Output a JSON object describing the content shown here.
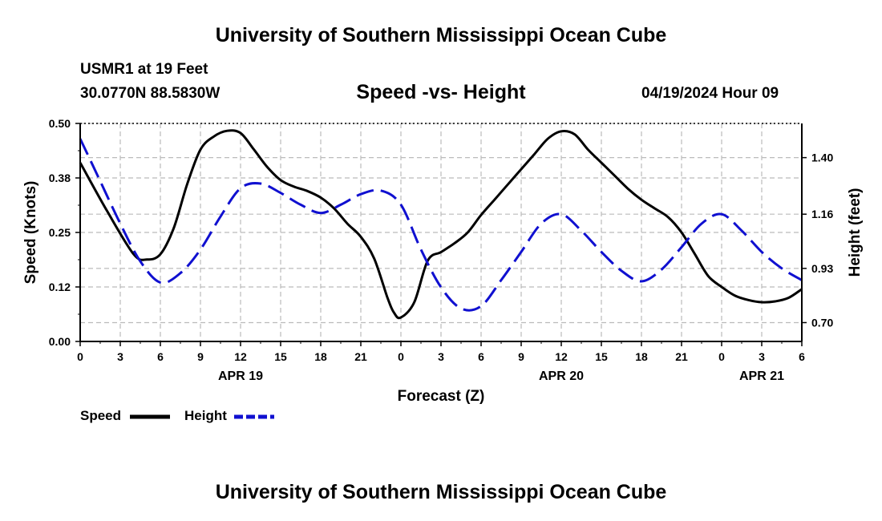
{
  "header": {
    "title": "University of Southern Mississippi Ocean Cube",
    "station": "USMR1 at 19 Feet",
    "coords": "30.0770N  88.5830W",
    "subtitle": "Speed -vs- Height",
    "datetime": "04/19/2024 Hour 09"
  },
  "footer": {
    "title": "University of Southern Mississippi Ocean Cube"
  },
  "legend": {
    "speed_label": "Speed",
    "height_label": "Height"
  },
  "colors": {
    "speed": "#000000",
    "height": "#1010d0",
    "grid": "#bbbbbb"
  },
  "chart_data": {
    "type": "line",
    "title": "Speed -vs- Height",
    "xlabel": "Forecast (Z)",
    "ylabel": "Speed (Knots)",
    "ylabel_right": "Height (feet)",
    "xlim": [
      0,
      54
    ],
    "ylim": [
      0,
      0.5
    ],
    "ylim_right": [
      0.62,
      1.545
    ],
    "x_ticks": [
      0,
      3,
      6,
      9,
      12,
      15,
      18,
      21,
      24,
      27,
      30,
      33,
      36,
      39,
      42,
      45,
      48,
      51,
      54
    ],
    "x_tick_labels": [
      "0",
      "3",
      "6",
      "9",
      "12",
      "15",
      "18",
      "21",
      "0",
      "3",
      "6",
      "9",
      "12",
      "15",
      "18",
      "21",
      "0",
      "3",
      "6"
    ],
    "date_labels": [
      {
        "x": 12,
        "label": "APR 19"
      },
      {
        "x": 36,
        "label": "APR 20"
      },
      {
        "x": 51,
        "label": "APR 21"
      }
    ],
    "y_ticks": [
      0,
      0.125,
      0.25,
      0.375,
      0.5
    ],
    "y_tick_labels": [
      "0.00",
      "0.12",
      "0.25",
      "0.38",
      "0.50"
    ],
    "y_ticks_right": [
      0.7,
      0.93,
      1.16,
      1.4
    ],
    "y_tick_labels_right": [
      "0.70",
      "0.93",
      "1.16",
      "1.40"
    ],
    "grid": true,
    "series": [
      {
        "name": "Speed",
        "axis": "left",
        "style": "solid",
        "x": [
          0,
          2,
          4,
          5,
          6,
          7,
          8,
          9,
          10,
          11,
          12,
          13,
          14,
          15,
          16,
          17,
          18,
          19,
          20,
          21,
          22,
          23,
          23.5,
          24,
          25,
          26,
          27,
          28,
          29,
          30,
          31,
          32,
          33,
          34,
          35,
          36,
          37,
          38,
          39,
          40,
          41,
          42,
          43,
          44,
          45,
          46,
          47,
          48,
          49,
          50,
          51,
          52,
          53,
          54
        ],
        "y": [
          0.41,
          0.3,
          0.2,
          0.188,
          0.2,
          0.26,
          0.36,
          0.44,
          0.47,
          0.483,
          0.478,
          0.44,
          0.4,
          0.37,
          0.355,
          0.345,
          0.33,
          0.305,
          0.27,
          0.24,
          0.19,
          0.1,
          0.065,
          0.055,
          0.09,
          0.185,
          0.205,
          0.225,
          0.25,
          0.29,
          0.325,
          0.36,
          0.395,
          0.43,
          0.465,
          0.482,
          0.475,
          0.44,
          0.41,
          0.38,
          0.35,
          0.325,
          0.305,
          0.285,
          0.25,
          0.2,
          0.15,
          0.125,
          0.105,
          0.095,
          0.09,
          0.092,
          0.1,
          0.12
        ]
      },
      {
        "name": "Height",
        "axis": "right",
        "style": "dashed",
        "x": [
          0,
          1.5,
          3,
          4.5,
          6,
          7.5,
          9,
          10.5,
          12,
          13.5,
          15,
          16.5,
          18,
          19.5,
          21,
          22.5,
          24,
          25.5,
          27,
          28.5,
          30,
          31.5,
          33,
          34.5,
          36,
          37.5,
          39,
          40.5,
          42,
          43.5,
          45,
          46.5,
          48,
          49.5,
          51,
          52.5,
          54
        ],
        "y": [
          1.48,
          1.3,
          1.12,
          0.96,
          0.87,
          0.91,
          1.01,
          1.15,
          1.27,
          1.29,
          1.25,
          1.2,
          1.165,
          1.2,
          1.245,
          1.26,
          1.2,
          1.01,
          0.85,
          0.76,
          0.77,
          0.88,
          1.0,
          1.12,
          1.16,
          1.09,
          1.0,
          0.92,
          0.875,
          0.925,
          1.02,
          1.12,
          1.16,
          1.09,
          1.0,
          0.93,
          0.88
        ]
      }
    ]
  }
}
